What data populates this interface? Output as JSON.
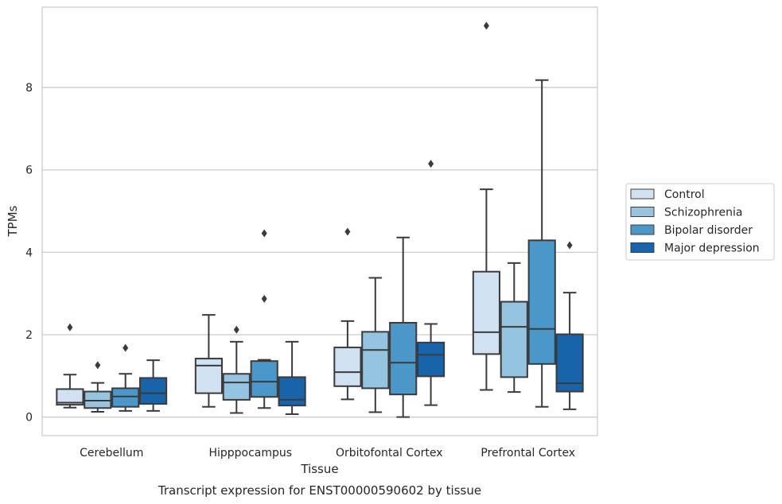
{
  "chart_data": {
    "type": "box",
    "caption": "Transcript expression for ENST00000590602 by tissue",
    "xlabel": "Tissue",
    "ylabel": "TPMs",
    "ylim": [
      -0.45,
      9.95
    ],
    "yticks": [
      0,
      2,
      4,
      6,
      8
    ],
    "grid": true,
    "legend_position": "right",
    "categories": [
      "Cerebellum",
      "Hipppocampus",
      "Orbitofontal Cortex",
      "Prefrontal Cortex"
    ],
    "series": [
      {
        "name": "Control",
        "color": "#d0e1f2",
        "boxes": [
          {
            "whislo": 0.23,
            "q1": 0.3,
            "med": 0.35,
            "q3": 0.68,
            "whishi": 1.03,
            "fliers": [
              2.18
            ]
          },
          {
            "whislo": 0.25,
            "q1": 0.58,
            "med": 1.25,
            "q3": 1.42,
            "whishi": 2.48,
            "fliers": []
          },
          {
            "whislo": 0.43,
            "q1": 0.75,
            "med": 1.09,
            "q3": 1.69,
            "whishi": 2.33,
            "fliers": [
              4.5
            ]
          },
          {
            "whislo": 0.66,
            "q1": 1.53,
            "med": 2.06,
            "q3": 3.53,
            "whishi": 5.53,
            "fliers": [
              9.5
            ]
          }
        ]
      },
      {
        "name": "Schizophrenia",
        "color": "#94c4df",
        "boxes": [
          {
            "whislo": 0.13,
            "q1": 0.22,
            "med": 0.4,
            "q3": 0.62,
            "whishi": 0.83,
            "fliers": [
              1.26
            ]
          },
          {
            "whislo": 0.1,
            "q1": 0.42,
            "med": 0.84,
            "q3": 1.05,
            "whishi": 1.83,
            "fliers": [
              2.12
            ]
          },
          {
            "whislo": 0.12,
            "q1": 0.7,
            "med": 1.63,
            "q3": 2.07,
            "whishi": 3.38,
            "fliers": []
          },
          {
            "whislo": 0.61,
            "q1": 0.97,
            "med": 2.19,
            "q3": 2.8,
            "whishi": 3.74,
            "fliers": []
          }
        ]
      },
      {
        "name": "Bipolar disorder",
        "color": "#4a98c9",
        "boxes": [
          {
            "whislo": 0.15,
            "q1": 0.25,
            "med": 0.5,
            "q3": 0.7,
            "whishi": 1.05,
            "fliers": [
              1.68
            ]
          },
          {
            "whislo": 0.22,
            "q1": 0.49,
            "med": 0.86,
            "q3": 1.36,
            "whishi": 1.39,
            "fliers": [
              2.87,
              4.46
            ]
          },
          {
            "whislo": 0.0,
            "q1": 0.55,
            "med": 1.32,
            "q3": 2.29,
            "whishi": 4.36,
            "fliers": []
          },
          {
            "whislo": 0.25,
            "q1": 1.29,
            "med": 2.14,
            "q3": 4.29,
            "whishi": 8.18,
            "fliers": []
          }
        ]
      },
      {
        "name": "Major depression",
        "color": "#1764ab",
        "boxes": [
          {
            "whislo": 0.15,
            "q1": 0.32,
            "med": 0.58,
            "q3": 0.95,
            "whishi": 1.38,
            "fliers": []
          },
          {
            "whislo": 0.07,
            "q1": 0.28,
            "med": 0.42,
            "q3": 0.97,
            "whishi": 1.83,
            "fliers": []
          },
          {
            "whislo": 0.29,
            "q1": 0.99,
            "med": 1.51,
            "q3": 1.81,
            "whishi": 2.26,
            "fliers": [
              6.15
            ]
          },
          {
            "whislo": 0.19,
            "q1": 0.62,
            "med": 0.82,
            "q3": 2.01,
            "whishi": 3.02,
            "fliers": [
              4.17
            ]
          }
        ]
      }
    ]
  }
}
